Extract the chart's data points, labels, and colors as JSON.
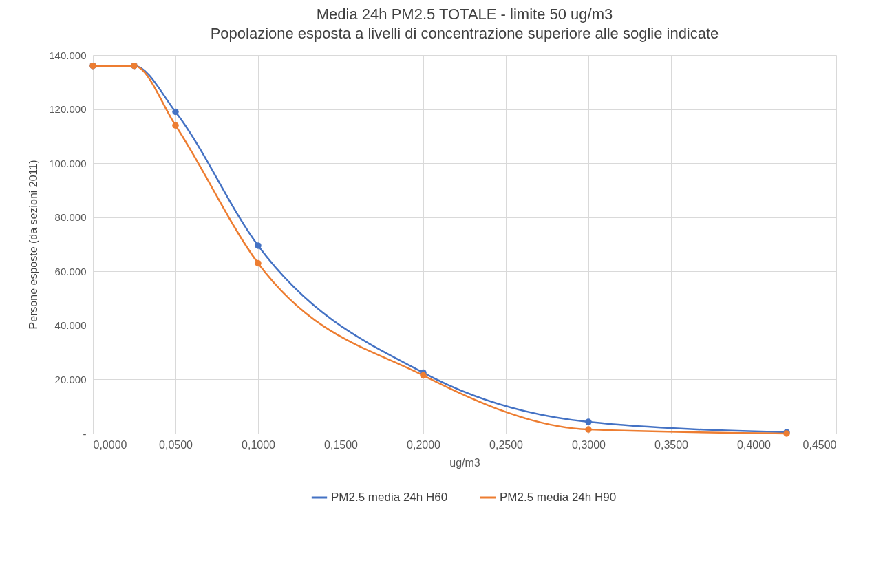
{
  "chart_data": {
    "type": "line",
    "title": "Media 24h  PM2.5 TOTALE - limite 50 ug/m3",
    "subtitle": "Popolazione esposta a livelli di concentrazione superiore alle soglie indicate",
    "xlabel": "ug/m3",
    "ylabel": "Persone esposte (da sezioni 2011)",
    "x": [
      0,
      0.025,
      0.05,
      0.1,
      0.2,
      0.3,
      0.42
    ],
    "series": [
      {
        "name": "PM2.5 media 24h H60",
        "color": "#4472c4",
        "values": [
          136000,
          136000,
          119000,
          69500,
          22500,
          4300,
          500
        ]
      },
      {
        "name": "PM2.5  media 24h H90",
        "color": "#ed7d31",
        "values": [
          136000,
          136000,
          114000,
          63000,
          21500,
          1500,
          0
        ]
      }
    ],
    "xlim": [
      0,
      0.45
    ],
    "xticks": [
      {
        "value": 0,
        "label": "0,0000"
      },
      {
        "value": 0.05,
        "label": "0,0500"
      },
      {
        "value": 0.1,
        "label": "0,1000"
      },
      {
        "value": 0.15,
        "label": "0,1500"
      },
      {
        "value": 0.2,
        "label": "0,2000"
      },
      {
        "value": 0.25,
        "label": "0,2500"
      },
      {
        "value": 0.3,
        "label": "0,3000"
      },
      {
        "value": 0.35,
        "label": "0,3500"
      },
      {
        "value": 0.4,
        "label": "0,4000"
      },
      {
        "value": 0.45,
        "label": "0,4500"
      }
    ],
    "ylim": [
      0,
      140000
    ],
    "yticks": [
      {
        "value": 0,
        "label": "-"
      },
      {
        "value": 20000,
        "label": "20.000"
      },
      {
        "value": 40000,
        "label": "40.000"
      },
      {
        "value": 60000,
        "label": "60.000"
      },
      {
        "value": 80000,
        "label": "80.000"
      },
      {
        "value": 100000,
        "label": "100.000"
      },
      {
        "value": 120000,
        "label": "120.000"
      },
      {
        "value": 140000,
        "label": "140.000"
      }
    ],
    "grid": true,
    "legend": "bottom",
    "marker": "circle",
    "line_style": "solid"
  }
}
